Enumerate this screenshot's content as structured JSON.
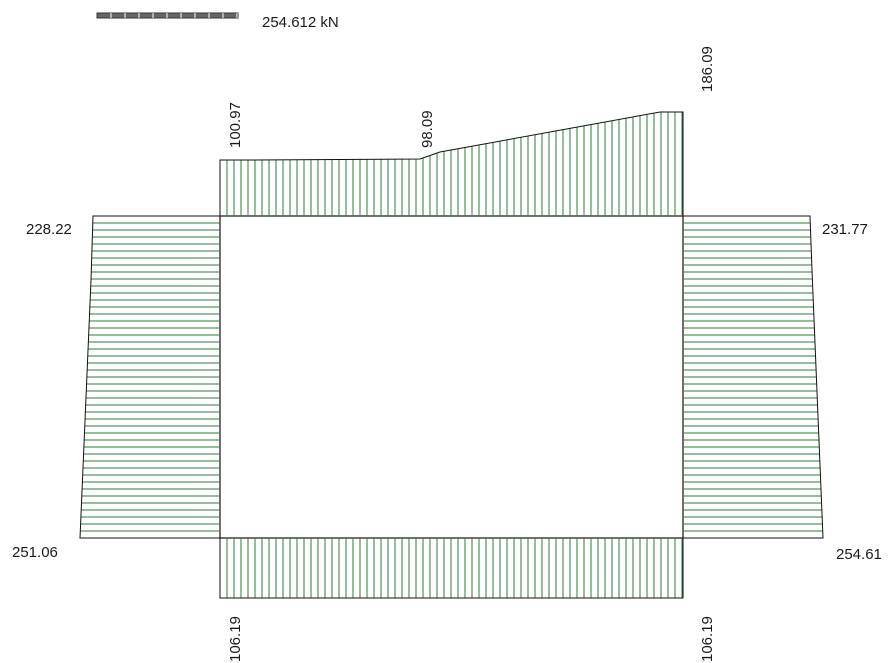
{
  "scale": {
    "label": "254.612 kN",
    "value": 254.612,
    "unit": "kN"
  },
  "diagram": {
    "top": {
      "left_value": "100.97",
      "mid_value": "98.09",
      "right_value": "186.09"
    },
    "bottom": {
      "left_value": "106.19",
      "right_value": "106.19"
    },
    "left": {
      "top_value": "228.22",
      "bottom_value": "251.06"
    },
    "right": {
      "top_value": "231.77",
      "bottom_value": "254.61"
    }
  },
  "colors": {
    "hatch": "#2e7d32",
    "outline": "#111111",
    "scale_bar": "#555555"
  }
}
